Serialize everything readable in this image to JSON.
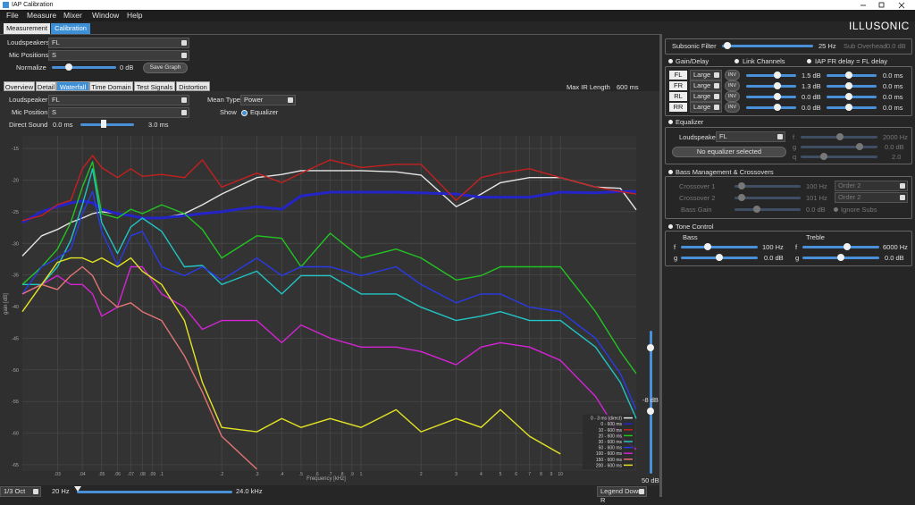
{
  "window": {
    "title": "IAP Calibration",
    "brand": "ILLUSONIC"
  },
  "menu": [
    "File",
    "Measure",
    "Mixer",
    "Window",
    "Help"
  ],
  "tabs": [
    "Measurement",
    "Calibration"
  ],
  "left": {
    "loudspeakers_label": "Loudspeakers",
    "loudspeakers": "FL",
    "mic_positions_label": "Mic Positions",
    "mic_positions": "S",
    "normalize_label": "Normalize",
    "normalize_value": "0 dB",
    "save_graph": "Save Graph"
  },
  "subtabs": [
    "Overview",
    "Detail",
    "Waterfall",
    "Time Domain",
    "Test Signals",
    "Distortion"
  ],
  "max_ir": {
    "label": "Max IR Length",
    "value": "600 ms"
  },
  "waterfall": {
    "loudspeaker_label": "Loudspeaker",
    "loudspeaker": "FL",
    "mic_position_label": "Mic Position",
    "mic_position": "S",
    "mean_type_label": "Mean Type",
    "mean_type": "Power",
    "show_label": "Show",
    "equalizer": "Equalizer",
    "direct_sound_label": "Direct Sound",
    "direct_start": "0.0 ms",
    "direct_end": "3.0 ms"
  },
  "chart_data": {
    "type": "line",
    "xlabel": "Frequency [kHz]",
    "ylabel": "gain [dB]",
    "xscale": "log",
    "grid": true,
    "legend": "lower right",
    "xlim": [
      0.02,
      24
    ],
    "ylim": [
      -66,
      -13
    ],
    "xticks": [
      {
        "value": 0.03,
        "label": ".03"
      },
      {
        "value": 0.04,
        "label": ".04"
      },
      {
        "value": 0.05,
        "label": ".05"
      },
      {
        "value": 0.06,
        "label": ".06"
      },
      {
        "value": 0.07,
        "label": ".07"
      },
      {
        "value": 0.08,
        "label": ".08"
      },
      {
        "value": 0.09,
        "label": ".09"
      },
      {
        "value": 0.1,
        "label": ".1"
      },
      {
        "value": 0.2,
        "label": ".2"
      },
      {
        "value": 0.3,
        "label": ".3"
      },
      {
        "value": 0.4,
        "label": ".4"
      },
      {
        "value": 0.5,
        "label": ".5"
      },
      {
        "value": 0.6,
        "label": ".6"
      },
      {
        "value": 0.7,
        "label": ".7"
      },
      {
        "value": 0.8,
        "label": ".8"
      },
      {
        "value": 0.9,
        "label": ".9"
      },
      1,
      2,
      3,
      4,
      5,
      6,
      7,
      8,
      9,
      10
    ],
    "yticks": [
      -15,
      -20,
      -25,
      -30,
      -35,
      -40,
      -45,
      -50,
      -55,
      -60,
      -65
    ],
    "x": [
      0.02,
      0.025,
      0.03,
      0.035,
      0.04,
      0.045,
      0.05,
      0.06,
      0.07,
      0.08,
      0.1,
      0.13,
      0.16,
      0.2,
      0.3,
      0.4,
      0.5,
      0.7,
      1,
      1.5,
      2,
      3,
      4,
      5,
      7,
      10,
      15,
      20,
      24
    ],
    "series": [
      {
        "name": "0 - 3 ms (direct)",
        "color": "#e6e6e6",
        "values": [
          -32.0,
          -28.8,
          -27.8,
          -26.7,
          -26.0,
          -25.3,
          -25.0,
          -25.3,
          -25.6,
          -26.0,
          -26.0,
          -25.3,
          -23.9,
          -22.2,
          -19.6,
          -19.1,
          -18.5,
          -18.5,
          -18.5,
          -18.7,
          -19.2,
          -24.2,
          -22.2,
          -20.4,
          -19.6,
          -19.6,
          -21.1,
          -21.3,
          -24.7
        ]
      },
      {
        "name": "0 - 600 ms",
        "color": "#2424c8",
        "linewidth": 3,
        "values": [
          -26.7,
          -25.0,
          -24.2,
          -23.6,
          -23.3,
          -23.6,
          -24.6,
          -25.3,
          -25.6,
          -26.0,
          -26.0,
          -25.6,
          -25.3,
          -25.0,
          -24.2,
          -24.6,
          -22.5,
          -21.9,
          -21.9,
          -21.9,
          -22.0,
          -22.2,
          -22.7,
          -22.7,
          -22.7,
          -21.9,
          -22.0,
          -21.8,
          -21.8
        ]
      },
      {
        "name": "10 - 600 ms",
        "color": "#c42020",
        "values": [
          -26.4,
          -25.6,
          -23.9,
          -23.2,
          -18.2,
          -16.1,
          -18.0,
          -19.6,
          -18.2,
          -19.4,
          -19.1,
          -19.6,
          -16.8,
          -21.1,
          -18.9,
          -20.4,
          -18.9,
          -16.8,
          -18.0,
          -17.5,
          -17.5,
          -23.2,
          -19.6,
          -18.9,
          -18.2,
          -19.6,
          -21.1,
          -21.8,
          -22.2
        ]
      },
      {
        "name": "20 - 600 ms",
        "color": "#22c422",
        "values": [
          -36.5,
          -33.7,
          -30.9,
          -26.7,
          -21.1,
          -17.1,
          -25.3,
          -26.0,
          -24.6,
          -25.3,
          -23.9,
          -25.3,
          -27.8,
          -32.3,
          -28.8,
          -29.2,
          -33.7,
          -28.4,
          -32.3,
          -30.9,
          -32.3,
          -35.8,
          -35.1,
          -33.7,
          -33.7,
          -33.7,
          -40.8,
          -47.1,
          -50.6
        ]
      },
      {
        "name": "30 - 600 ms",
        "color": "#22c4c4",
        "values": [
          -36.5,
          -36.5,
          -33.7,
          -29.5,
          -23.9,
          -18.2,
          -26.7,
          -31.6,
          -27.4,
          -26.0,
          -28.1,
          -33.7,
          -33.5,
          -36.5,
          -34.4,
          -38.0,
          -35.1,
          -35.1,
          -38.0,
          -38.0,
          -40.1,
          -42.2,
          -41.5,
          -40.8,
          -42.2,
          -42.2,
          -46.4,
          -52.0,
          -57.7
        ]
      },
      {
        "name": "50 - 600 ms",
        "color": "#2a3ae6",
        "values": [
          -38.0,
          -33.7,
          -32.3,
          -30.9,
          -25.3,
          -21.8,
          -28.1,
          -33.5,
          -28.8,
          -28.1,
          -33.7,
          -35.1,
          -33.7,
          -35.8,
          -32.3,
          -35.1,
          -33.7,
          -33.7,
          -35.1,
          -33.7,
          -36.5,
          -39.4,
          -38.0,
          -38.0,
          -40.1,
          -40.8,
          -45.0,
          -50.6,
          -56.3
        ]
      },
      {
        "name": "100 - 600 ms",
        "color": "#d424d4",
        "values": [
          -38.0,
          -36.5,
          -35.1,
          -36.5,
          -36.5,
          -38.0,
          -41.5,
          -40.1,
          -33.7,
          -33.7,
          -38.0,
          -40.1,
          -43.6,
          -42.2,
          -42.2,
          -45.7,
          -42.9,
          -45.0,
          -46.4,
          -46.4,
          -47.1,
          -49.2,
          -46.4,
          -45.7,
          -46.4,
          -48.5,
          -54.2,
          -60.5,
          -62.6
        ]
      },
      {
        "name": "150 - 600 ms",
        "color": "#e27474",
        "values": [
          -38.0,
          -36.5,
          -37.3,
          -35.1,
          -33.7,
          -35.1,
          -38.0,
          -40.1,
          -39.4,
          -40.8,
          -42.2,
          -47.8,
          -53.5,
          -60.5,
          -65.7,
          null,
          null,
          null,
          null,
          null,
          null,
          null,
          null,
          null,
          null,
          null,
          null,
          null,
          null
        ]
      },
      {
        "name": "200 - 600 ms",
        "color": "#e4e424",
        "values": [
          -40.8,
          -36.5,
          -33.0,
          -32.3,
          -32.3,
          -33.0,
          -32.3,
          -33.7,
          -32.3,
          -34.4,
          -36.5,
          -42.2,
          -52.0,
          -59.1,
          -59.8,
          -57.7,
          -59.1,
          -57.7,
          -59.1,
          -56.3,
          -59.8,
          -57.7,
          -59.1,
          -56.3,
          -60.5,
          -63.3,
          null,
          null,
          null
        ]
      }
    ]
  },
  "gain_slider": {
    "top": "-8 dB",
    "bottom": "50 dB"
  },
  "bottom": {
    "resolution": "1/3 Oct",
    "f_min": "20 Hz",
    "f_max": "24.0 kHz",
    "legend_pos": "Legend Down R"
  },
  "right": {
    "subsonic": {
      "label": "Subsonic Filter",
      "value": "25 Hz",
      "sub_overhead_label": "Sub Overhead",
      "sub_overhead": "0.0 dB"
    },
    "gain_delay": {
      "label": "Gain/Delay",
      "link": "Link Channels",
      "iap": "IAP FR delay = FL delay",
      "channels": [
        {
          "name": "FL",
          "size": "Large",
          "inv": "INV",
          "gain": "1.5 dB",
          "delay": "0.0 ms"
        },
        {
          "name": "FR",
          "size": "Large",
          "inv": "INV",
          "gain": "1.3 dB",
          "delay": "0.0 ms"
        },
        {
          "name": "RL",
          "size": "Large",
          "inv": "INV",
          "gain": "0.0 dB",
          "delay": "0.0 ms"
        },
        {
          "name": "RR",
          "size": "Large",
          "inv": "INV",
          "gain": "0.0 dB",
          "delay": "0.0 ms"
        }
      ]
    },
    "equalizer": {
      "label": "Equalizer",
      "loudspeaker_label": "Loudspeaker",
      "loudspeaker": "FL",
      "status": "No equalizer selected",
      "f_label": "f",
      "f": "2000 Hz",
      "g_label": "g",
      "g": "0.0 dB",
      "q_label": "q",
      "q": "2.0"
    },
    "bass": {
      "label": "Bass Management & Crossovers",
      "crossover1_label": "Crossover 1",
      "crossover1": "100 Hz",
      "order1": "Order 2",
      "crossover2_label": "Crossover 2",
      "crossover2": "101 Hz",
      "order2": "Order 2",
      "bass_gain_label": "Bass Gain",
      "bass_gain": "0.0 dB",
      "ignore_subs": "Ignore Subs"
    },
    "tone": {
      "label": "Tone Control",
      "bass_label": "Bass",
      "bass_f_label": "f",
      "bass_f": "100 Hz",
      "bass_g_label": "g",
      "bass_g": "0.0 dB",
      "treble_label": "Treble",
      "treble_f_label": "f",
      "treble_f": "6000 Hz",
      "treble_g_label": "g",
      "treble_g": "0.0 dB"
    }
  }
}
